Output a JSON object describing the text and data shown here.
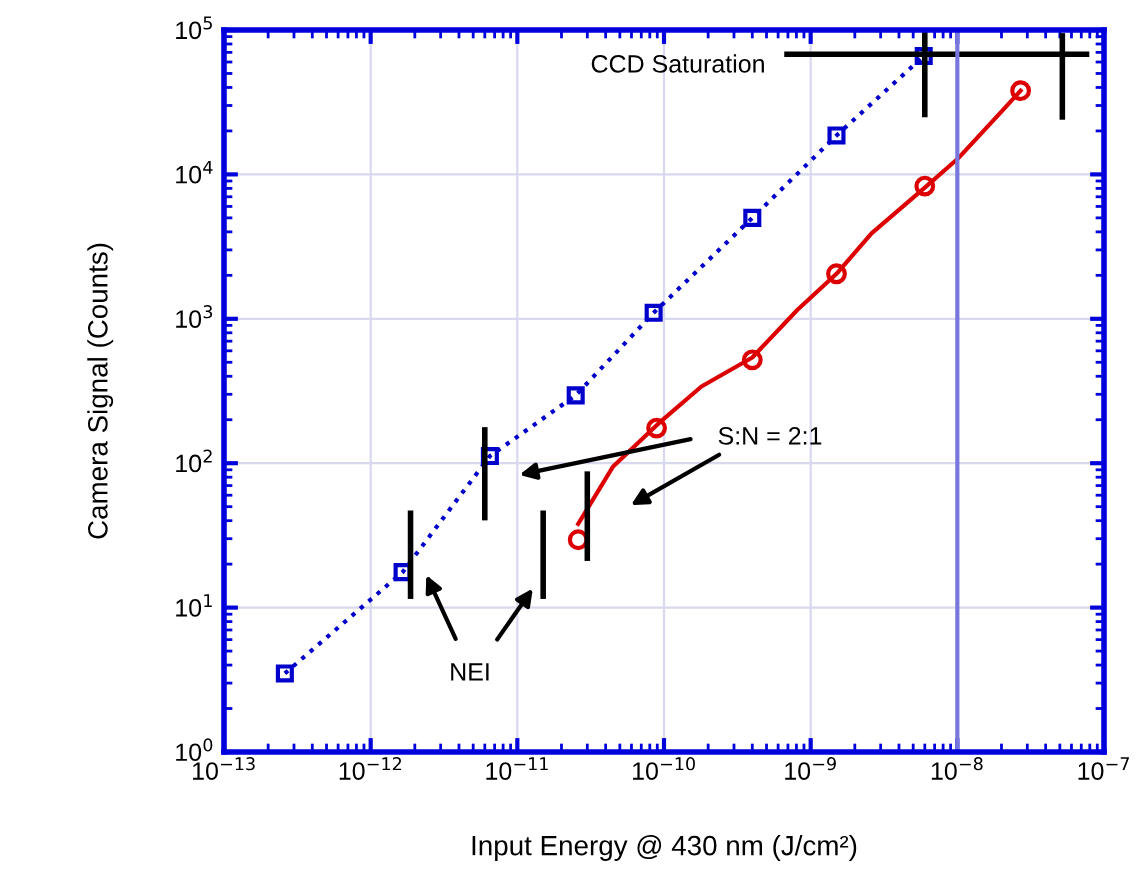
{
  "chart_data": {
    "type": "line",
    "xlabel": "Input Energy @ 430 nm (J/cm²)",
    "ylabel": "Camera Signal (Counts)",
    "log": "xy",
    "xlim": [
      1e-13,
      1e-07
    ],
    "ylim": [
      1,
      100000
    ],
    "xticks": [
      {
        "value": 1e-13,
        "label": "10$^{−13}$"
      },
      {
        "value": 1e-12,
        "label": "10$^{−12}$"
      },
      {
        "value": 1e-11,
        "label": "10$^{−11}$"
      },
      {
        "value": 1e-10,
        "label": "10$^{−10}$"
      },
      {
        "value": 1e-09,
        "label": "10$^{−9}$"
      },
      {
        "value": 1e-08,
        "label": "10$^{−8}$"
      },
      {
        "value": 1e-07,
        "label": "10$^{−7}$"
      }
    ],
    "yticks": [
      {
        "value": 1,
        "label": "10$^{0}$"
      },
      {
        "value": 10,
        "label": "10$^{1}$"
      },
      {
        "value": 100,
        "label": "10$^{2}$"
      },
      {
        "value": 1000,
        "label": "10$^{3}$"
      },
      {
        "value": 10000,
        "label": "10$^{4}$"
      },
      {
        "value": 100000,
        "label": "10$^{5}$"
      }
    ],
    "grid": true,
    "series": [
      {
        "color": "#0000cc",
        "marker": "square",
        "line_style": "dotted",
        "x": [
          2.6e-13,
          1.65e-12,
          6.5e-12,
          2.5e-11,
          8.5e-11,
          4e-10,
          1.5e-09,
          5.9e-09
        ],
        "values": [
          3.5,
          17.6,
          112,
          295,
          1100,
          5000,
          18600,
          66000
        ]
      },
      {
        "color": "#dd0000",
        "line_style": "solid",
        "x": [
          2.6e-11,
          4.5e-11,
          9.1e-11,
          1.8e-10,
          4e-10,
          8.1e-10,
          1.5e-09,
          2.6e-09,
          6e-09,
          1.02e-08,
          2.05e-08,
          2.7e-08
        ],
        "values": [
          38,
          95,
          187,
          340,
          540,
          1150,
          2050,
          3900,
          8100,
          13000,
          28000,
          38000
        ]
      },
      {
        "type": "scatter",
        "color": "#dd0000",
        "marker": "circle",
        "x": [
          2.6e-11,
          8.9e-11,
          4e-10,
          1.5e-09,
          6e-09,
          2.7e-08
        ],
        "values": [
          29.5,
          175,
          520,
          2050,
          8300,
          38000
        ]
      },
      {
        "color": "#000000",
        "line_style": "solid",
        "x": [
          1.87e-12,
          1.87e-12
        ],
        "values": [
          12,
          45
        ]
      },
      {
        "color": "#000000",
        "line_style": "solid",
        "x": [
          6e-12,
          6e-12
        ],
        "values": [
          42,
          170
        ]
      },
      {
        "color": "#000000",
        "line_style": "solid",
        "x": [
          1.5e-11,
          1.5e-11
        ],
        "values": [
          12,
          45
        ]
      },
      {
        "color": "#000000",
        "line_style": "solid",
        "x": [
          3e-11,
          3e-11
        ],
        "values": [
          22,
          84
        ]
      },
      {
        "color": "#000000",
        "line_style": "solid",
        "x": [
          6e-09,
          6e-09
        ],
        "values": [
          26000,
          100000
        ]
      },
      {
        "color": "#000000",
        "line_style": "solid",
        "x": [
          5.2e-08,
          5.2e-08
        ],
        "values": [
          25000,
          91000
        ]
      },
      {
        "color": "#000000",
        "line_style": "solid",
        "x": [
          6.9e-10,
          7.6e-08
        ],
        "values": [
          68000,
          68000
        ]
      }
    ],
    "ref_lines": [
      {
        "axis": "x",
        "value": 1e-08,
        "color": "#7777dd"
      }
    ],
    "annotations": [
      "CCD Saturation",
      "S:N = 2:1",
      "NEI"
    ]
  }
}
